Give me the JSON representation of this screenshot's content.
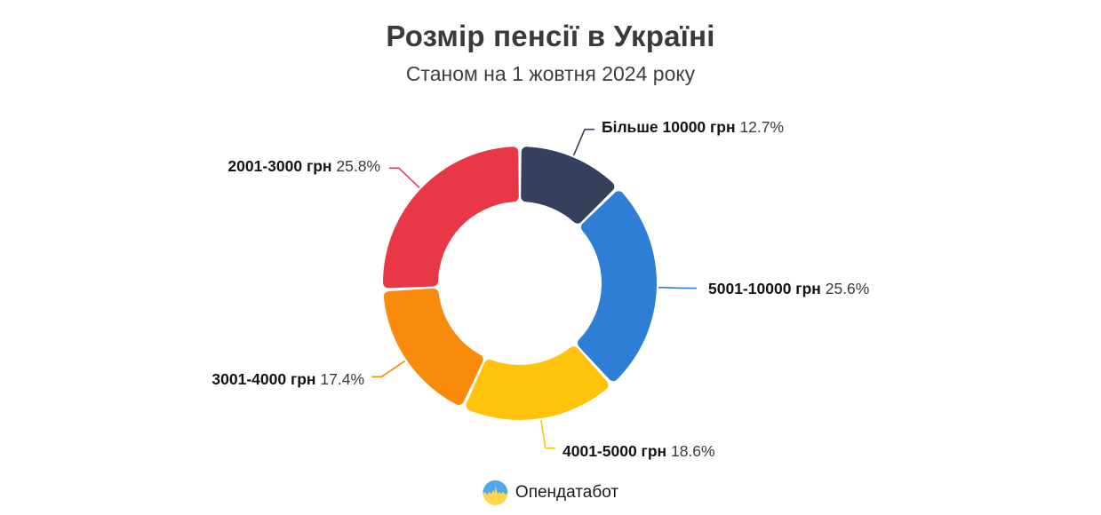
{
  "header": {
    "title": "Розмір пенсії в Україні",
    "subtitle": "Станом на 1 жовтня 2024 року"
  },
  "footer": {
    "brand": "Опендатабот",
    "logo_colors": {
      "top": "#4FA8EC",
      "bottom": "#FFD44F"
    }
  },
  "colors": {
    "background": "#FFFFFF",
    "title_text": "#3A3A3A",
    "label_text": "#141414",
    "percent_text": "#3A3A3A"
  },
  "chart_data": {
    "type": "donut",
    "title": "Розмір пенсії в Україні",
    "subtitle": "Станом на 1 жовтня 2024 року",
    "unit": "percent",
    "direction": "clockwise",
    "start_angle_deg": 0,
    "legend_position": "callout-labels",
    "slices": [
      {
        "label": "Більше 10000 грн",
        "value": 12.7,
        "display": "12.7%",
        "color": "#34405C"
      },
      {
        "label": "5001-10000 грн",
        "value": 25.6,
        "display": "25.6%",
        "color": "#2E7ED5"
      },
      {
        "label": "4001-5000 грн",
        "value": 18.6,
        "display": "18.6%",
        "color": "#FFC30B"
      },
      {
        "label": "3001-4000 грн",
        "value": 17.4,
        "display": "17.4%",
        "color": "#F88B0C"
      },
      {
        "label": "2001-3000 грн",
        "value": 25.8,
        "display": "25.8%",
        "color": "#E83747"
      }
    ]
  }
}
